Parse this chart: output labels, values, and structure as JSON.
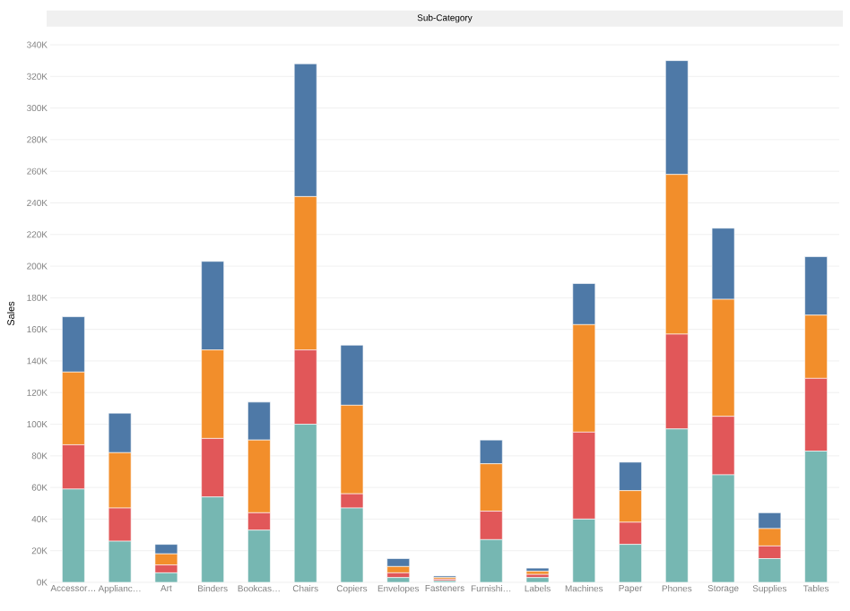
{
  "chart_data": {
    "type": "bar",
    "stacked": true,
    "title": "Sub-Category",
    "ylabel": "Sales",
    "grid": "y",
    "categories": [
      "Accessor…",
      "Applianc…",
      "Art",
      "Binders",
      "Bookcas…",
      "Chairs",
      "Copiers",
      "Envelopes",
      "Fasteners",
      "Furnishi…",
      "Labels",
      "Machines",
      "Paper",
      "Phones",
      "Storage",
      "Supplies",
      "Tables"
    ],
    "series": [
      {
        "color": "#76b7b2",
        "values": [
          59,
          26,
          6,
          54,
          33,
          100,
          47,
          3,
          1,
          27,
          3,
          40,
          24,
          97,
          68,
          15,
          83
        ]
      },
      {
        "color": "#e15759",
        "values": [
          28,
          21,
          5,
          37,
          11,
          47,
          9,
          3,
          1,
          18,
          2,
          55,
          14,
          60,
          37,
          8,
          46
        ]
      },
      {
        "color": "#f28e2b",
        "values": [
          46,
          35,
          7,
          56,
          46,
          97,
          56,
          4,
          1,
          30,
          2,
          68,
          20,
          101,
          74,
          11,
          40
        ]
      },
      {
        "color": "#4e79a7",
        "values": [
          35,
          25,
          6,
          56,
          24,
          84,
          38,
          5,
          1,
          15,
          2,
          26,
          18,
          72,
          45,
          10,
          37
        ]
      }
    ],
    "ylim": [
      0,
      340
    ],
    "yticks": [
      {
        "value": 0,
        "label": "0K"
      },
      {
        "value": 20,
        "label": "20K"
      },
      {
        "value": 40,
        "label": "40K"
      },
      {
        "value": 60,
        "label": "60K"
      },
      {
        "value": 80,
        "label": "80K"
      },
      {
        "value": 100,
        "label": "100K"
      },
      {
        "value": 120,
        "label": "120K"
      },
      {
        "value": 140,
        "label": "140K"
      },
      {
        "value": 160,
        "label": "160K"
      },
      {
        "value": 180,
        "label": "180K"
      },
      {
        "value": 200,
        "label": "200K"
      },
      {
        "value": 220,
        "label": "220K"
      },
      {
        "value": 240,
        "label": "240K"
      },
      {
        "value": 260,
        "label": "260K"
      },
      {
        "value": 280,
        "label": "280K"
      },
      {
        "value": 300,
        "label": "300K"
      },
      {
        "value": 320,
        "label": "320K"
      },
      {
        "value": 340,
        "label": "340K"
      }
    ]
  }
}
